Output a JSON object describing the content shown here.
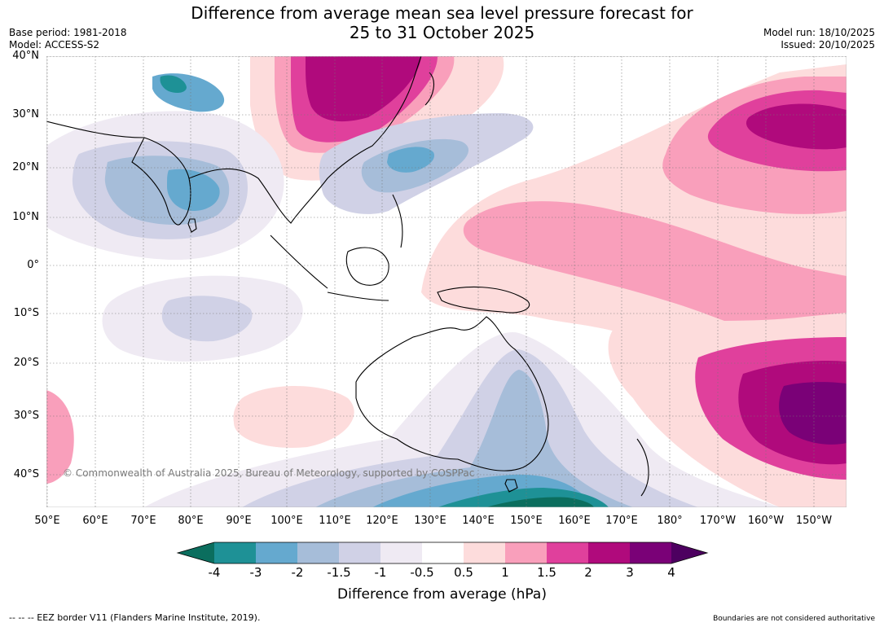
{
  "title_line1": "Difference from average mean sea level pressure forecast for",
  "title_line2": "25 to 31 October 2025",
  "base_period": "Base period: 1981-2018",
  "model": "Model: ACCESS-S2",
  "model_run": "Model run: 18/10/2025",
  "issued": "Issued: 20/10/2025",
  "copyright": "© Commonwealth of Australia 2025, Bureau of Meteorology, supported by COSPPac",
  "lat_labels": [
    "40°N",
    "30°N",
    "20°N",
    "10°N",
    "0°",
    "10°S",
    "20°S",
    "30°S",
    "40°S"
  ],
  "lon_labels": [
    "50°E",
    "60°E",
    "70°E",
    "80°E",
    "90°E",
    "100°E",
    "110°E",
    "120°E",
    "130°E",
    "140°E",
    "150°E",
    "160°E",
    "170°E",
    "180°",
    "170°W",
    "160°W",
    "150°W"
  ],
  "colorbar": {
    "title": "Difference from average (hPa)",
    "tick_labels": [
      "-4",
      "-3",
      "-2",
      "-1.5",
      "-1",
      "-0.5",
      "0.5",
      "1",
      "1.5",
      "2",
      "3",
      "4"
    ],
    "colors": [
      "#0b6e5e",
      "#1e9196",
      "#65a9cf",
      "#a6bdd9",
      "#d0d1e6",
      "#efeaf3",
      "#ffffff",
      "#fddcdc",
      "#f99fbb",
      "#e0409c",
      "#b00a7c",
      "#7a0177",
      "#4d0060"
    ]
  },
  "footer_left": "--  --  -- EEZ border V11 (Flanders Marine Institute, 2019).",
  "footer_right": "Boundaries are not considered authoritative"
}
